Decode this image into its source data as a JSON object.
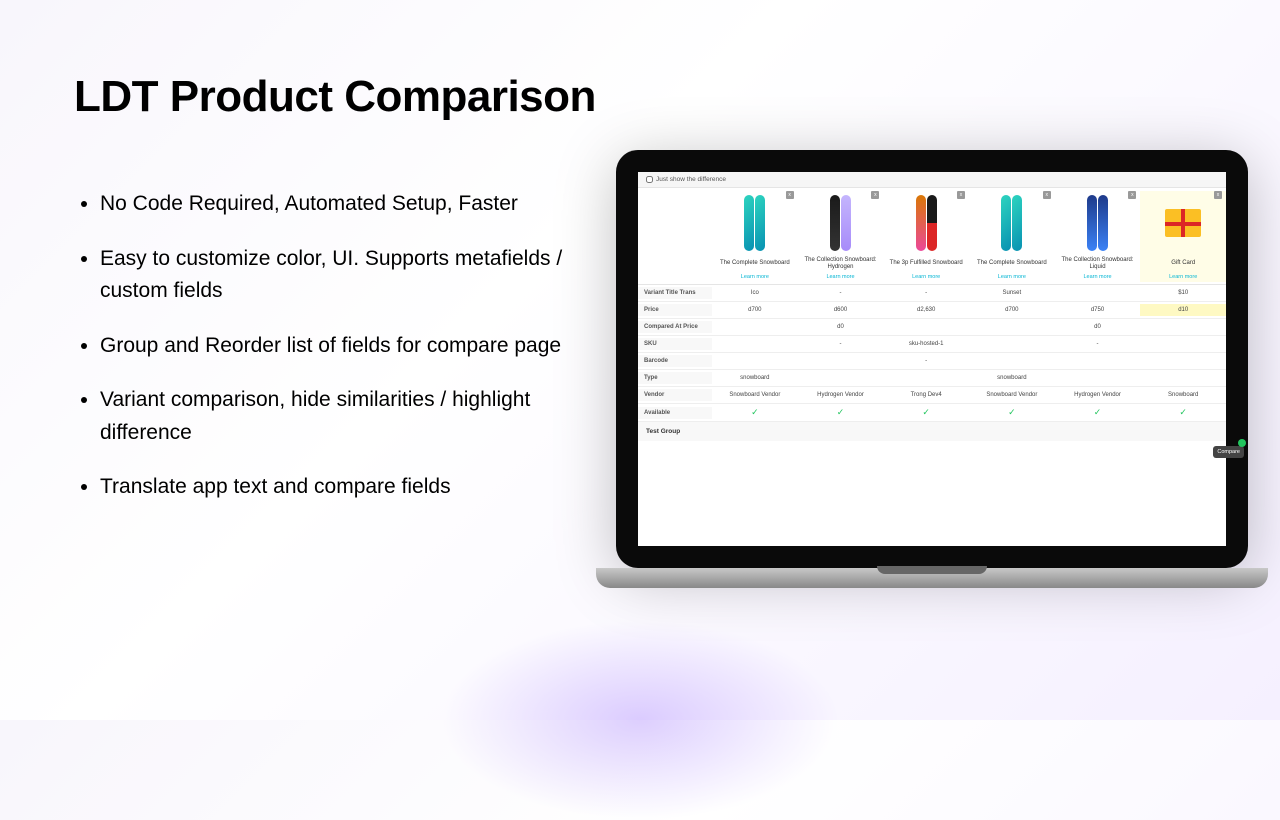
{
  "title": "LDT Product Comparison",
  "bullets": [
    "No Code Required, Automated Setup, Faster",
    "Easy to customize color, UI. Supports metafields / custom fields",
    "Group and Reorder list of fields for compare page",
    "Variant comparison, hide similarities / highlight difference",
    "Translate app text and compare fields"
  ],
  "ui": {
    "checkbox_label": "Just show the difference",
    "learn_more": "Learn more",
    "compare_btn": "Compare",
    "test_group": "Test Group"
  },
  "products": [
    {
      "name": "The Complete Snowboard"
    },
    {
      "name": "The Collection Snowboard: Hydrogen"
    },
    {
      "name": "The 3p Fulfilled Snowboard"
    },
    {
      "name": "The Complete Snowboard"
    },
    {
      "name": "The Collection Snowboard: Liquid"
    },
    {
      "name": "Gift Card",
      "highlighted": true
    }
  ],
  "rows": [
    {
      "label": "Variant Title Trans",
      "cells": [
        "Ico",
        "-",
        "-",
        "Sunset",
        "",
        "$10"
      ]
    },
    {
      "label": "Price",
      "cells": [
        "d700",
        "d600",
        "d2,630",
        "d700",
        "d750",
        "d10"
      ],
      "highlight_last": true
    },
    {
      "label": "Compared At Price",
      "cells": [
        "",
        "d0",
        "",
        "",
        "d0",
        ""
      ]
    },
    {
      "label": "SKU",
      "cells": [
        "",
        "-",
        "sku-hosted-1",
        "",
        "-",
        ""
      ]
    },
    {
      "label": "Barcode",
      "cells": [
        "",
        "",
        "-",
        "",
        "",
        ""
      ]
    },
    {
      "label": "Type",
      "cells": [
        "snowboard",
        "",
        "",
        "snowboard",
        "",
        ""
      ]
    },
    {
      "label": "Vendor",
      "cells": [
        "Snowboard Vendor",
        "Hydrogen Vendor",
        "Trong Dev4",
        "Snowboard Vendor",
        "Hydrogen Vendor",
        "Snowboard"
      ]
    },
    {
      "label": "Available",
      "cells": [
        "✓",
        "✓",
        "✓",
        "✓",
        "✓",
        "✓"
      ],
      "check": true
    }
  ],
  "colors": {
    "accent": "#06b6d4",
    "highlight": "#fef9c3",
    "check": "#22c55e"
  }
}
